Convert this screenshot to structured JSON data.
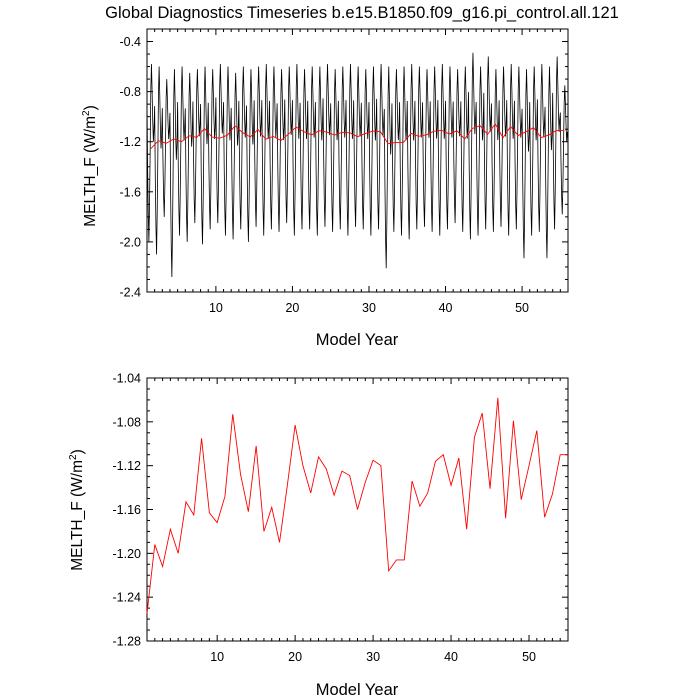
{
  "title": "Global Diagnostics Timeseries b.e15.B1850.f09_g16.pi_control.all.121",
  "chart_data": [
    {
      "type": "line",
      "xlabel": "Model Year",
      "ylabel": "MELTH_F (W/m",
      "ylabel_sup": "2",
      "ylabel_end": ")",
      "xlim": [
        1,
        56
      ],
      "ylim": [
        -2.4,
        -0.3
      ],
      "xticks": [
        10,
        20,
        30,
        40,
        50
      ],
      "xtick_labels": [
        "10",
        "20",
        "30",
        "40",
        "50"
      ],
      "yticks": [
        -2.4,
        -2.0,
        -1.6,
        -1.2,
        -0.8,
        -0.4
      ],
      "ytick_labels": [
        "-2.4",
        "-2.0",
        "-1.6",
        "-1.2",
        "-0.8",
        "-0.4"
      ],
      "monthly_series": {
        "name": "monthly",
        "color": "#000000",
        "months_per_year": 12,
        "annual_cycle": [
          -0.9,
          -1.4,
          -1.75,
          -1.95,
          -1.65,
          -1.25,
          -0.8,
          -0.62,
          -0.82,
          -1.05,
          -1.2,
          -1.1
        ],
        "year_min": [
          -2.0,
          -2.1,
          -1.8,
          -2.28,
          -1.95,
          -2.0,
          -1.85,
          -2.02,
          -1.9,
          -1.85,
          -1.95,
          -1.98,
          -1.9,
          -2.0,
          -1.88,
          -1.95,
          -1.9,
          -1.92,
          -1.85,
          -1.95,
          -1.9,
          -1.9,
          -1.95,
          -1.88,
          -1.92,
          -1.9,
          -1.95,
          -1.88,
          -1.9,
          -1.95,
          -1.9,
          -2.21,
          -1.92,
          -1.95,
          -1.98,
          -1.9,
          -1.88,
          -1.92,
          -1.95,
          -1.9,
          -1.85,
          -1.92,
          -1.98,
          -1.95,
          -1.9,
          -1.92,
          -1.88,
          -1.95,
          -1.9,
          -2.13,
          -1.95,
          -1.92,
          -2.13,
          -1.9,
          -1.78
        ],
        "year_max": [
          -0.58,
          -0.6,
          -0.7,
          -0.62,
          -0.6,
          -0.65,
          -0.62,
          -0.6,
          -0.62,
          -0.58,
          -0.6,
          -0.65,
          -0.6,
          -0.62,
          -0.6,
          -0.58,
          -0.6,
          -0.62,
          -0.6,
          -0.58,
          -0.62,
          -0.6,
          -0.6,
          -0.58,
          -0.62,
          -0.6,
          -0.58,
          -0.6,
          -0.62,
          -0.6,
          -0.58,
          -0.6,
          -0.62,
          -0.6,
          -0.58,
          -0.6,
          -0.62,
          -0.6,
          -0.58,
          -0.6,
          -0.62,
          -0.6,
          -0.49,
          -0.6,
          -0.52,
          -0.62,
          -0.6,
          -0.58,
          -0.6,
          -0.62,
          -0.6,
          -0.58,
          -0.6,
          -0.52,
          -0.75
        ]
      },
      "annual_series": {
        "name": "annual mean",
        "color": "#ff0000",
        "x": [
          1,
          2,
          3,
          4,
          5,
          6,
          7,
          8,
          9,
          10,
          11,
          12,
          13,
          14,
          15,
          16,
          17,
          18,
          19,
          20,
          21,
          22,
          23,
          24,
          25,
          26,
          27,
          28,
          29,
          30,
          31,
          32,
          33,
          34,
          35,
          36,
          37,
          38,
          39,
          40,
          41,
          42,
          43,
          44,
          45,
          46,
          47,
          48,
          49,
          50,
          51,
          52,
          53,
          54,
          55
        ],
        "values": [
          -1.255,
          -1.192,
          -1.212,
          -1.178,
          -1.2,
          -1.153,
          -1.165,
          -1.095,
          -1.163,
          -1.172,
          -1.148,
          -1.073,
          -1.128,
          -1.162,
          -1.102,
          -1.18,
          -1.158,
          -1.19,
          -1.138,
          -1.083,
          -1.12,
          -1.145,
          -1.112,
          -1.123,
          -1.147,
          -1.125,
          -1.129,
          -1.16,
          -1.135,
          -1.115,
          -1.12,
          -1.216,
          -1.206,
          -1.206,
          -1.134,
          -1.157,
          -1.145,
          -1.116,
          -1.11,
          -1.138,
          -1.113,
          -1.178,
          -1.094,
          -1.072,
          -1.141,
          -1.058,
          -1.168,
          -1.079,
          -1.151,
          -1.12,
          -1.088,
          -1.167,
          -1.146,
          -1.11,
          -1.11
        ]
      }
    },
    {
      "type": "line",
      "xlabel": "Model Year",
      "ylabel": "MELTH_F (W/m",
      "ylabel_sup": "2",
      "ylabel_end": ")",
      "xlim": [
        1,
        55
      ],
      "ylim": [
        -1.28,
        -1.04
      ],
      "xticks": [
        10,
        20,
        30,
        40,
        50
      ],
      "xtick_labels": [
        "10",
        "20",
        "30",
        "40",
        "50"
      ],
      "yticks": [
        -1.28,
        -1.24,
        -1.2,
        -1.16,
        -1.12,
        -1.08,
        -1.04
      ],
      "ytick_labels": [
        "-1.28",
        "-1.24",
        "-1.20",
        "-1.16",
        "-1.12",
        "-1.08",
        "-1.04"
      ],
      "series": [
        {
          "name": "annual mean",
          "color": "#ff0000",
          "x": [
            1,
            2,
            3,
            4,
            5,
            6,
            7,
            8,
            9,
            10,
            11,
            12,
            13,
            14,
            15,
            16,
            17,
            18,
            19,
            20,
            21,
            22,
            23,
            24,
            25,
            26,
            27,
            28,
            29,
            30,
            31,
            32,
            33,
            34,
            35,
            36,
            37,
            38,
            39,
            40,
            41,
            42,
            43,
            44,
            45,
            46,
            47,
            48,
            49,
            50,
            51,
            52,
            53,
            54,
            55
          ],
          "values": [
            -1.255,
            -1.192,
            -1.212,
            -1.178,
            -1.2,
            -1.153,
            -1.165,
            -1.095,
            -1.163,
            -1.172,
            -1.148,
            -1.073,
            -1.128,
            -1.162,
            -1.102,
            -1.18,
            -1.158,
            -1.19,
            -1.138,
            -1.083,
            -1.12,
            -1.145,
            -1.112,
            -1.123,
            -1.147,
            -1.125,
            -1.129,
            -1.16,
            -1.135,
            -1.115,
            -1.12,
            -1.216,
            -1.206,
            -1.206,
            -1.134,
            -1.157,
            -1.145,
            -1.116,
            -1.11,
            -1.138,
            -1.113,
            -1.178,
            -1.094,
            -1.072,
            -1.141,
            -1.058,
            -1.168,
            -1.079,
            -1.151,
            -1.12,
            -1.088,
            -1.167,
            -1.146,
            -1.11,
            -1.11
          ]
        }
      ]
    }
  ]
}
